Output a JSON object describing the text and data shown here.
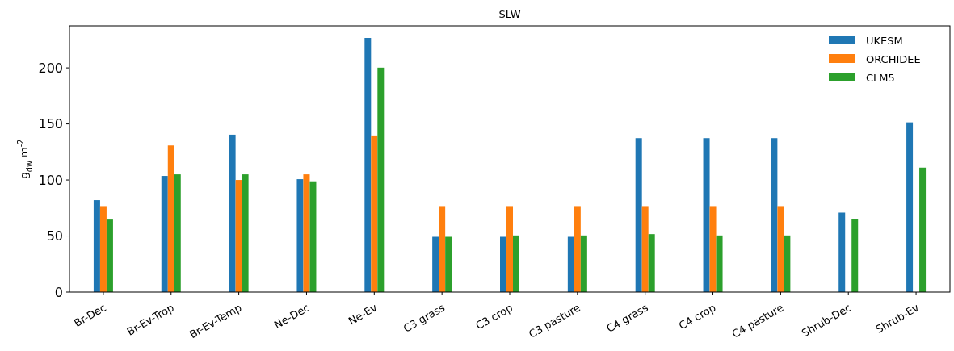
{
  "chart_data": {
    "type": "bar",
    "title": "SLW",
    "ylabel": "g$_{dw}$ m$^{-2}$",
    "categories": [
      "Br-Dec",
      "Br-Ev-Trop",
      "Br-Ev-Temp",
      "Ne-Dec",
      "Ne-Ev",
      "C3 grass",
      "C3 crop",
      "C3 pasture",
      "C4 grass",
      "C4 crop",
      "C4 pasture",
      "Shrub-Dec",
      "Shrub-Ev"
    ],
    "series": [
      {
        "name": "UKESM",
        "color": "#1f77b4",
        "values": [
          82,
          103.6,
          140.4,
          100.7,
          226.7,
          49.3,
          49.3,
          49.3,
          137.3,
          137.3,
          137.3,
          70.9,
          151.4
        ]
      },
      {
        "name": "ORCHIDEE",
        "color": "#ff7f0e",
        "values": [
          76.7,
          130.8,
          100,
          105,
          139.7,
          76.7,
          76.7,
          76.7,
          76.7,
          76.7,
          76.7,
          null,
          null
        ]
      },
      {
        "name": "CLM5",
        "color": "#2ca02c",
        "values": [
          64.7,
          105,
          105,
          98.8,
          200.2,
          49.3,
          50.5,
          50.5,
          51.7,
          50.5,
          50.5,
          64.9,
          111
        ]
      }
    ],
    "ylim": [
      0,
      237.5
    ],
    "yticks": [
      0,
      50,
      100,
      150,
      200
    ],
    "legend": "top right",
    "grid": false
  }
}
